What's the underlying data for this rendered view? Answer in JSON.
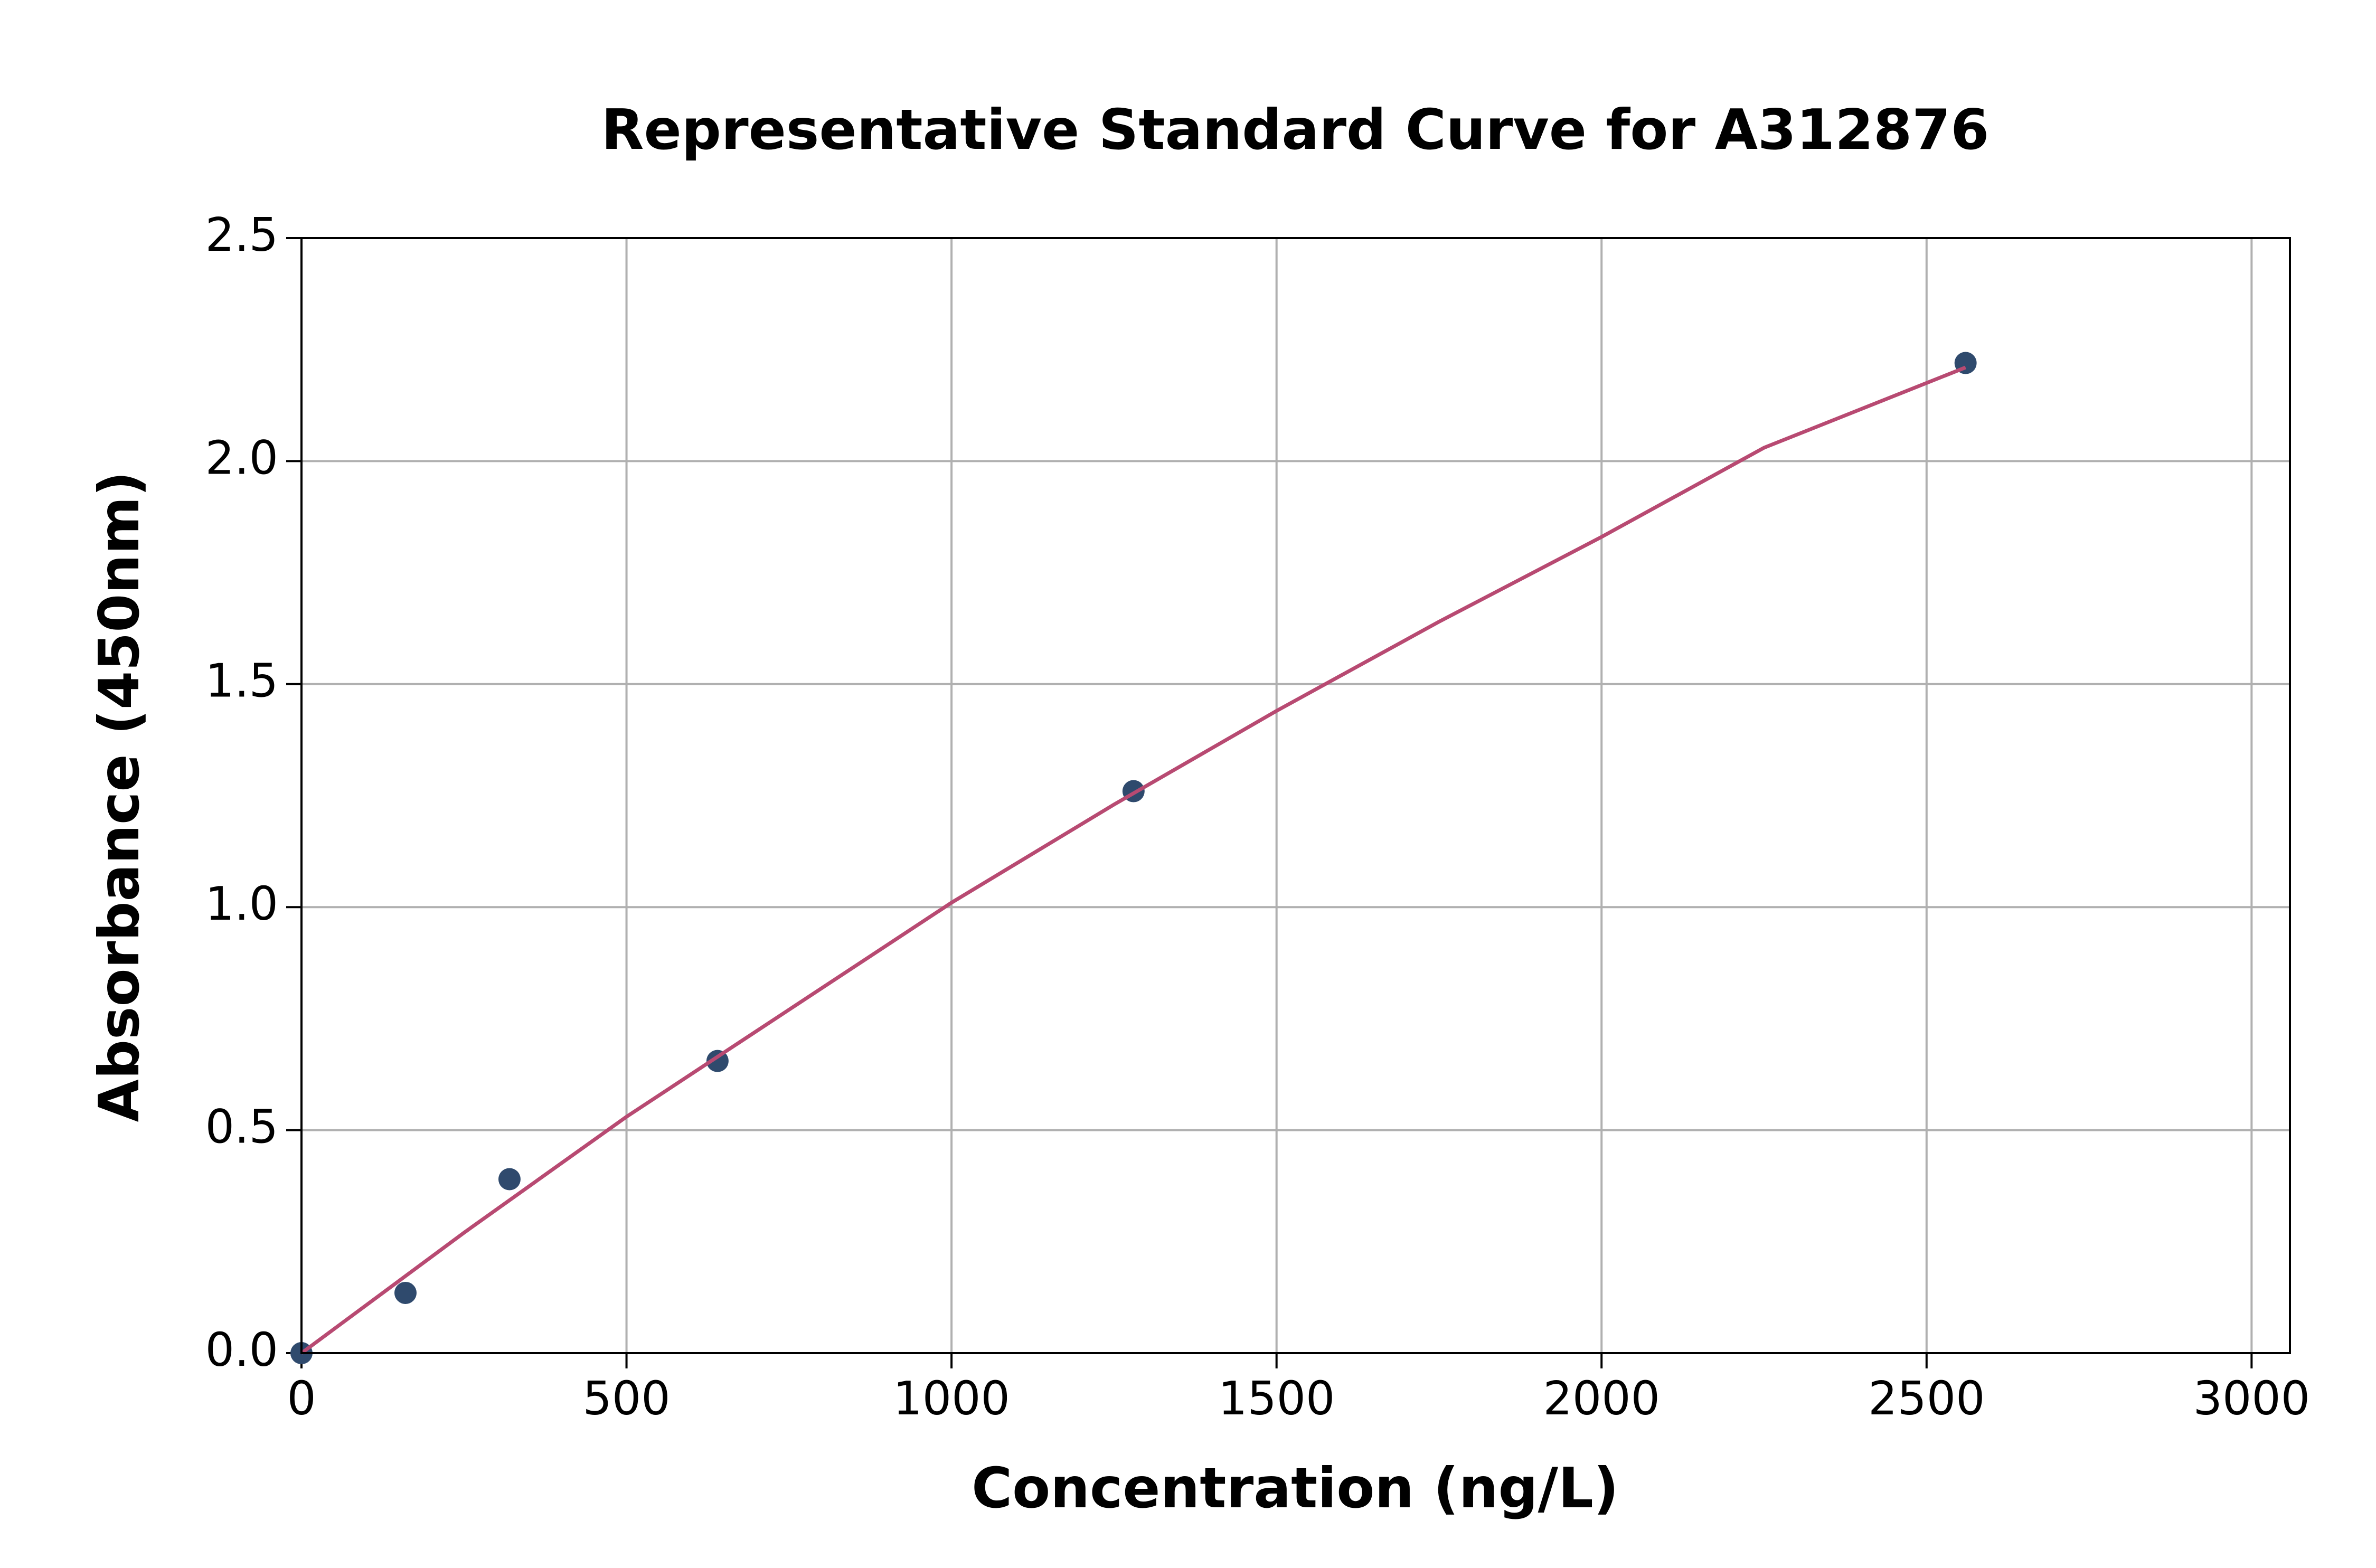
{
  "chart_data": {
    "type": "scatter",
    "title": "Representative Standard Curve for A312876",
    "x_label": "Concentration (ng/L)",
    "y_label": "Absorbance (450nm)",
    "xlim": [
      0,
      3059
    ],
    "ylim": [
      0,
      2.5
    ],
    "xticks": [
      0,
      500,
      1000,
      1500,
      2000,
      2500,
      3000
    ],
    "yticks": [
      {
        "value": 0,
        "label": "0.0"
      },
      0.5,
      {
        "value": 1,
        "label": "1.0"
      },
      1.5,
      {
        "value": 2,
        "label": "2.0"
      },
      2.5
    ],
    "grid": true,
    "series": [
      {
        "type": "scatter",
        "color": "#2f4a6d",
        "x": [
          0,
          160,
          320,
          640,
          1280,
          2560
        ],
        "values": [
          0.0,
          0.135,
          0.39,
          0.655,
          1.26,
          2.22
        ]
      },
      {
        "type": "line",
        "color": "#b84a72",
        "x": [
          0,
          250,
          500,
          750,
          1000,
          1250,
          1500,
          1750,
          2000,
          2250,
          2560
        ],
        "values": [
          0.0,
          0.27,
          0.53,
          0.77,
          1.01,
          1.23,
          1.44,
          1.64,
          1.83,
          2.03,
          2.21
        ]
      }
    ]
  }
}
